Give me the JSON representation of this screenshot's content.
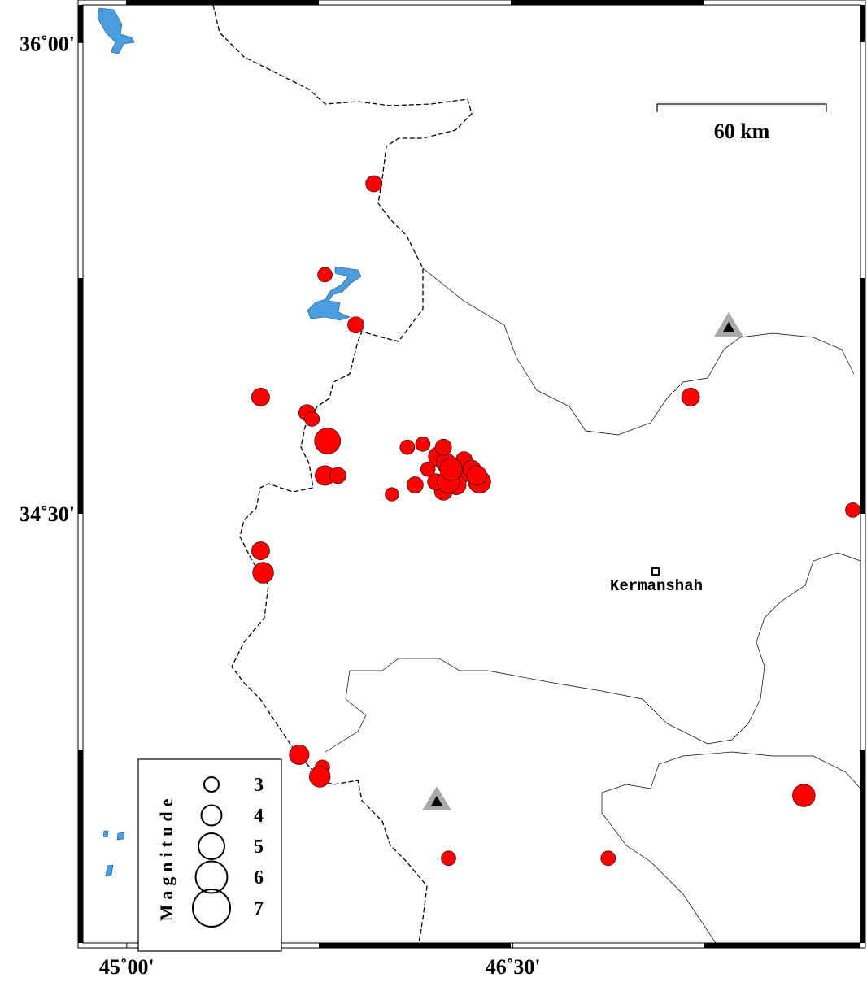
{
  "map": {
    "xlim": [
      44.83,
      47.85
    ],
    "ylim": [
      33.13,
      36.12
    ],
    "xticks": [
      {
        "value": 45,
        "label": "45˚00'"
      },
      {
        "value": 46.5,
        "label": "46˚30'"
      }
    ],
    "yticks": [
      {
        "value": 34.5,
        "label": "34˚30'"
      },
      {
        "value": 36,
        "label": "36˚00'"
      }
    ],
    "event_color": "#ff0000"
  },
  "events": [
    {
      "lon": 45.96,
      "lat": 35.55,
      "magnitude": 3.3
    },
    {
      "lon": 45.77,
      "lat": 35.26,
      "magnitude": 3.0
    },
    {
      "lon": 45.89,
      "lat": 35.1,
      "magnitude": 3.3
    },
    {
      "lon": 45.52,
      "lat": 34.87,
      "magnitude": 3.6
    },
    {
      "lon": 45.7,
      "lat": 34.82,
      "magnitude": 3.3
    },
    {
      "lon": 45.72,
      "lat": 34.8,
      "magnitude": 3.0
    },
    {
      "lon": 45.78,
      "lat": 34.73,
      "magnitude": 5.0
    },
    {
      "lon": 45.77,
      "lat": 34.62,
      "magnitude": 3.9
    },
    {
      "lon": 45.82,
      "lat": 34.62,
      "magnitude": 3.3
    },
    {
      "lon": 46.09,
      "lat": 34.71,
      "magnitude": 3.0
    },
    {
      "lon": 46.15,
      "lat": 34.72,
      "magnitude": 3.0
    },
    {
      "lon": 46.03,
      "lat": 34.56,
      "magnitude": 2.8
    },
    {
      "lon": 46.12,
      "lat": 34.59,
      "magnitude": 3.3
    },
    {
      "lon": 46.21,
      "lat": 34.68,
      "magnitude": 3.9
    },
    {
      "lon": 46.24,
      "lat": 34.66,
      "magnitude": 3.9
    },
    {
      "lon": 46.29,
      "lat": 34.62,
      "magnitude": 3.9
    },
    {
      "lon": 46.32,
      "lat": 34.63,
      "magnitude": 3.6
    },
    {
      "lon": 46.37,
      "lat": 34.6,
      "magnitude": 4.4
    },
    {
      "lon": 46.23,
      "lat": 34.57,
      "magnitude": 3.6
    },
    {
      "lon": 46.2,
      "lat": 34.6,
      "magnitude": 3.3
    },
    {
      "lon": 46.28,
      "lat": 34.59,
      "magnitude": 3.9
    },
    {
      "lon": 46.31,
      "lat": 34.67,
      "magnitude": 3.3
    },
    {
      "lon": 46.25,
      "lat": 34.6,
      "magnitude": 4.4
    },
    {
      "lon": 46.34,
      "lat": 34.64,
      "magnitude": 3.6
    },
    {
      "lon": 46.17,
      "lat": 34.64,
      "magnitude": 3.0
    },
    {
      "lon": 46.23,
      "lat": 34.71,
      "magnitude": 3.3
    },
    {
      "lon": 46.36,
      "lat": 34.62,
      "magnitude": 3.9
    },
    {
      "lon": 46.26,
      "lat": 34.64,
      "magnitude": 4.4
    },
    {
      "lon": 45.52,
      "lat": 34.38,
      "magnitude": 3.6
    },
    {
      "lon": 45.53,
      "lat": 34.31,
      "magnitude": 4.1
    },
    {
      "lon": 45.67,
      "lat": 33.73,
      "magnitude": 3.9
    },
    {
      "lon": 45.76,
      "lat": 33.69,
      "magnitude": 3.0
    },
    {
      "lon": 45.75,
      "lat": 33.66,
      "magnitude": 4.1
    },
    {
      "lon": 46.25,
      "lat": 33.4,
      "magnitude": 3.0
    },
    {
      "lon": 46.87,
      "lat": 33.4,
      "magnitude": 3.0
    },
    {
      "lon": 47.63,
      "lat": 33.6,
      "magnitude": 4.4
    },
    {
      "lon": 47.19,
      "lat": 34.87,
      "magnitude": 3.6
    },
    {
      "lon": 47.82,
      "lat": 34.51,
      "magnitude": 3.0
    }
  ],
  "legend": {
    "title": "Magnitude",
    "magnitudes": [
      3,
      4,
      5,
      6,
      7
    ]
  },
  "scale_bar": {
    "label": "60 km"
  },
  "places": [
    {
      "label": "Kermanshah"
    }
  ]
}
